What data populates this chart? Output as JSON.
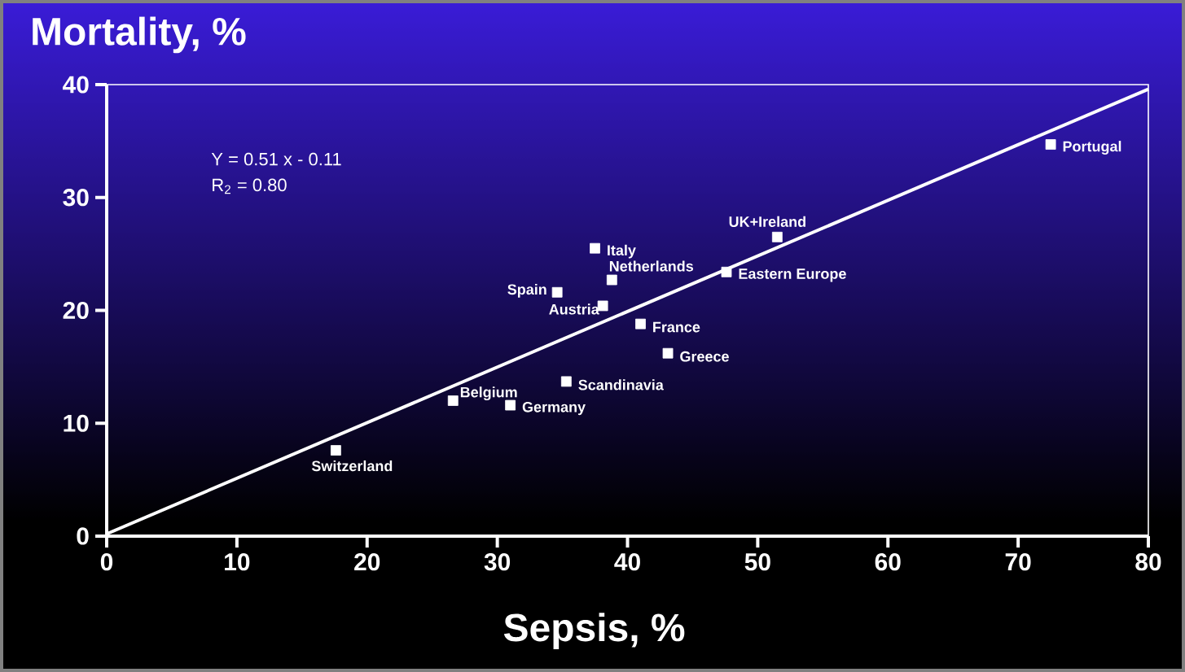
{
  "chart_data": {
    "type": "scatter",
    "xlabel": "Sepsis, %",
    "ylabel": "Mortality, %",
    "xlim": [
      0,
      80
    ],
    "ylim": [
      0,
      40
    ],
    "xticks": [
      0,
      10,
      20,
      30,
      40,
      50,
      60,
      70,
      80
    ],
    "yticks": [
      0,
      10,
      20,
      30,
      40
    ],
    "marker": "square",
    "series": [
      {
        "color": "#ffffff",
        "x": [
          17.6,
          26.6,
          31.0,
          35.3,
          34.6,
          37.5,
          38.1,
          38.8,
          41.0,
          43.1,
          47.6,
          51.5,
          72.5
        ],
        "values": [
          7.6,
          12.0,
          11.6,
          13.7,
          21.6,
          25.5,
          20.4,
          22.7,
          18.8,
          16.2,
          23.4,
          26.5,
          34.7
        ]
      },
      {
        "type": "line",
        "color": "#ffffff",
        "marker": "none",
        "x": [
          0,
          80
        ],
        "values": [
          0.2,
          39.6
        ]
      }
    ],
    "annotations": [
      "Y = 0.51 x - 0.11",
      "R$_{2}$ = 0.80",
      {
        "text": "Switzerland",
        "x": 17.6,
        "y": 7.6
      },
      {
        "text": "Belgium",
        "x": 26.6,
        "y": 12.0
      },
      {
        "text": "Germany",
        "x": 31.0,
        "y": 11.6
      },
      {
        "text": "Scandinavia",
        "x": 35.3,
        "y": 13.7
      },
      {
        "text": "Spain",
        "x": 34.6,
        "y": 21.6
      },
      {
        "text": "Italy",
        "x": 37.5,
        "y": 25.5
      },
      {
        "text": "Austria",
        "x": 38.1,
        "y": 20.4
      },
      {
        "text": "Netherlands",
        "x": 38.8,
        "y": 22.7
      },
      {
        "text": "France",
        "x": 41.0,
        "y": 18.8
      },
      {
        "text": "Greece",
        "x": 43.1,
        "y": 16.2
      },
      {
        "text": "Eastern Europe",
        "x": 47.6,
        "y": 23.4
      },
      {
        "text": "UK+Ireland",
        "x": 51.5,
        "y": 26.5
      },
      {
        "text": "Portugal",
        "x": 72.5,
        "y": 34.7
      }
    ]
  }
}
